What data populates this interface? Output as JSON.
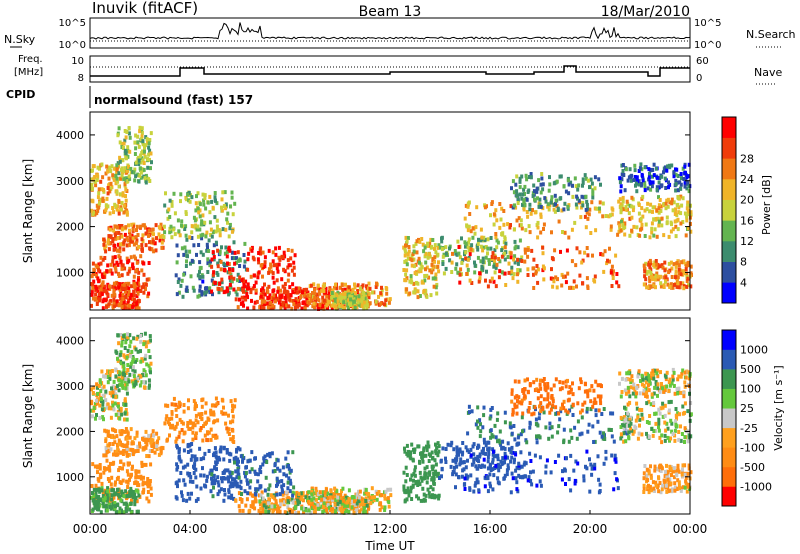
{
  "header": {
    "station": "Inuvik (fitACF)",
    "beam": "Beam 13",
    "date": "18/Mar/2010"
  },
  "top_panels": {
    "nsky_label": "N.Sky",
    "nsky_ticks": [
      "10^5",
      "10^0"
    ],
    "nsearch_label": "N.Search",
    "nsearch_ticks": [
      "10^5",
      "10^0"
    ],
    "freq_label_1": "Freq.",
    "freq_label_2": "[MHz]",
    "freq_ticks": [
      "10",
      "8"
    ],
    "nave_label": "Nave",
    "nave_ticks": [
      "60",
      "0"
    ],
    "cpid_label": "CPID",
    "cpid_value": "normalsound (fast) 157"
  },
  "colors": {
    "power_scale": [
      "#0000ff",
      "#2d4fa0",
      "#3c8c6e",
      "#63b450",
      "#c8d23c",
      "#f0b428",
      "#f07814",
      "#f03c0a",
      "#ff0000"
    ],
    "velocity_scale": [
      "#0000ff",
      "#2a5ab4",
      "#3c9650",
      "#64c83c",
      "#c8c8c8",
      "#ffa01e",
      "#ff8c14",
      "#ff6e0a",
      "#ff0000"
    ]
  },
  "chart_data": [
    {
      "type": "heatmap",
      "title": "Power",
      "ylabel": "Slant Range [km]",
      "yticks": [
        "1000",
        "2000",
        "3000",
        "4000"
      ],
      "ylim": [
        180,
        4500
      ],
      "colorbar_label": "Power [dB]",
      "colorbar_ticks": [
        "4",
        "8",
        "12",
        "16",
        "20",
        "24",
        "28"
      ],
      "region_values_db": [
        26,
        24,
        20,
        14,
        8,
        28,
        26,
        22,
        18,
        12,
        24,
        20,
        14,
        10,
        6,
        18,
        16,
        22,
        26,
        28
      ]
    },
    {
      "type": "heatmap",
      "title": "Velocity",
      "ylabel": "Slant Range [km]",
      "yticks": [
        "1000",
        "2000",
        "3000",
        "4000"
      ],
      "ylim": [
        180,
        4500
      ],
      "colorbar_label": "Velocity [m s⁻¹]",
      "colorbar_ticks": [
        "1000",
        "500",
        "100",
        "25",
        "-25",
        "-100",
        "-500",
        "-1000"
      ],
      "region_values_ms": [
        -300,
        -150,
        0,
        60,
        800,
        -200,
        20,
        -50,
        300,
        700,
        900,
        500,
        -400,
        -600,
        0,
        40,
        -20,
        -120,
        200,
        600
      ]
    }
  ],
  "xaxis": {
    "ticks": [
      "00:00",
      "04:00",
      "08:00",
      "12:00",
      "16:00",
      "20:00",
      "00:00"
    ],
    "label": "Time UT"
  }
}
